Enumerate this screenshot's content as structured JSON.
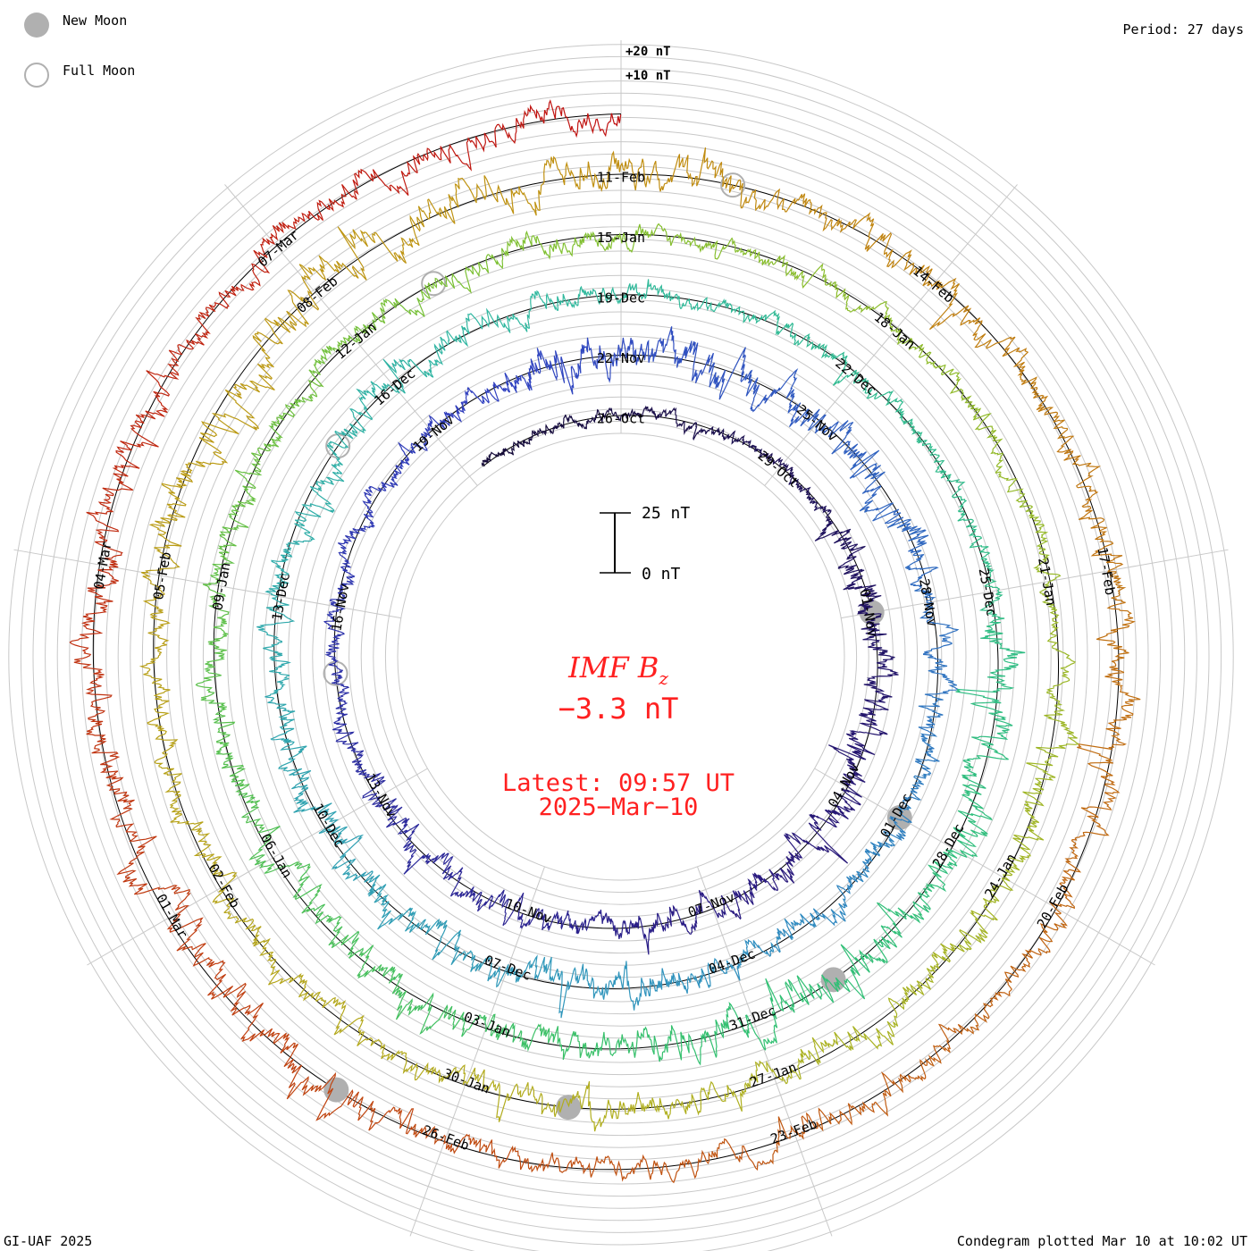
{
  "legend": {
    "new_moon": "New Moon",
    "full_moon": "Full Moon",
    "new_moon_color": "#b0b0b0",
    "full_moon_color": "#b0b0b0"
  },
  "period_label": "Period: 27 days",
  "footer_left": "GI-UAF 2025",
  "footer_right": "Condegram plotted Mar 10 at 10:02 UT",
  "chart_data": {
    "type": "line",
    "subtype": "spiral condegram",
    "title": "IMF B_z",
    "title_main": "IMF B",
    "title_sub": "z",
    "current_value": "−3.3 nT",
    "latest_label": "Latest: 09:57 UT",
    "latest_date": "2025−Mar−10",
    "period_days": 27,
    "turns": 5,
    "start_day_offset": -2.7,
    "end_day_offset": 135,
    "scale_bar": {
      "top": "25 nT",
      "bottom": "0 nT",
      "value_nT": 25
    },
    "ring_labels": [
      "+20 nT",
      "+10 nT"
    ],
    "ring_step_nT": 5,
    "date_labels": [
      "26-Oct",
      "29-Oct",
      "01-Nov",
      "04-Nov",
      "07-Nov",
      "10-Nov",
      "13-Nov",
      "16-Nov",
      "19-Nov",
      "22-Nov",
      "25-Nov",
      "28-Nov",
      "01-Dec",
      "04-Dec",
      "07-Dec",
      "10-Dec",
      "13-Dec",
      "16-Dec",
      "19-Dec",
      "22-Dec",
      "25-Dec",
      "28-Dec",
      "31-Dec",
      "03-Jan",
      "06-Jan",
      "09-Jan",
      "12-Jan",
      "15-Jan",
      "18-Jan",
      "21-Jan",
      "24-Jan",
      "27-Jan",
      "30-Jan",
      "02-Feb",
      "05-Feb",
      "08-Feb",
      "11-Feb",
      "14-Feb",
      "17-Feb",
      "20-Feb",
      "23-Feb",
      "26-Feb",
      "01-Mar",
      "04-Mar",
      "07-Mar"
    ],
    "new_moons_day_offset": [
      6,
      36,
      65,
      95,
      124
    ],
    "full_moons_day_offset": [
      20,
      50,
      79,
      109
    ],
    "activity_level_by_week_nT": [
      2,
      5,
      4,
      3,
      6,
      4,
      5,
      4,
      3,
      6,
      5,
      4,
      3,
      5,
      4,
      6,
      5,
      4,
      6,
      5
    ],
    "color_stops": [
      "#140a38",
      "#2a1a80",
      "#3040c0",
      "#3090c0",
      "#30b8a0",
      "#30c070",
      "#80c030",
      "#b0b020",
      "#c09010",
      "#c05010",
      "#c01010"
    ]
  }
}
